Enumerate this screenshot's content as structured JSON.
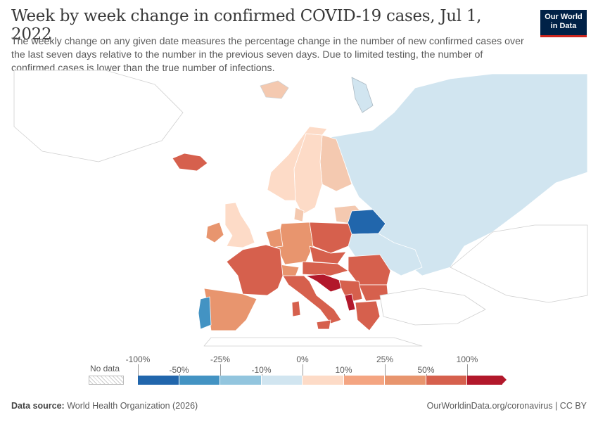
{
  "header": {
    "title": "Week by week change in confirmed COVID-19 cases, Jul 1, 2022",
    "subtitle": "The weekly change on any given date measures the percentage change in the number of new confirmed cases over the last seven days relative to the number in the previous seven days. Due to limited testing, the number of confirmed cases is lower than the true number of infections.",
    "logo_line1": "Our World",
    "logo_line2": "in Data"
  },
  "legend": {
    "no_data_label": "No data",
    "ticks_top": [
      "-100%",
      "-25%",
      "0%",
      "25%",
      "100%"
    ],
    "ticks_bottom": [
      "-50%",
      "-10%",
      "10%",
      "50%"
    ],
    "bins": [
      {
        "color": "#2166ac"
      },
      {
        "color": "#4393c3"
      },
      {
        "color": "#92c5de"
      },
      {
        "color": "#d1e5f0"
      },
      {
        "color": "#fddbc7"
      },
      {
        "color": "#f4a582"
      },
      {
        "color": "#e8956e"
      },
      {
        "color": "#d6604d"
      },
      {
        "color": "#b2182b"
      }
    ]
  },
  "regions": [
    {
      "name": "Russia",
      "change": "-10% to 0%",
      "color": "#d1e5f0"
    },
    {
      "name": "Belarus",
      "change": "below -50%",
      "color": "#2166ac"
    },
    {
      "name": "Portugal",
      "change": "-50% to -25%",
      "color": "#4393c3"
    },
    {
      "name": "Ukraine",
      "change": "-10% to 0%",
      "color": "#d1e5f0"
    },
    {
      "name": "Finland",
      "change": "10% to 25%",
      "color": "#f4c9b0"
    },
    {
      "name": "Sweden",
      "change": "0% to 10%",
      "color": "#fddbc7"
    },
    {
      "name": "Norway",
      "change": "0% to 10%",
      "color": "#fddbc7"
    },
    {
      "name": "United Kingdom",
      "change": "0% to 10%",
      "color": "#fddbc7"
    },
    {
      "name": "Iceland",
      "change": "50% to 100%",
      "color": "#d6604d"
    },
    {
      "name": "Spain",
      "change": "25% to 50%",
      "color": "#e8956e"
    },
    {
      "name": "France",
      "change": "50% to 100%",
      "color": "#d6604d"
    },
    {
      "name": "Germany",
      "change": "25% to 50%",
      "color": "#e8956e"
    },
    {
      "name": "Poland",
      "change": "50% to 100%",
      "color": "#d6604d"
    },
    {
      "name": "Italy",
      "change": "50% to 100%",
      "color": "#d6604d"
    },
    {
      "name": "Romania",
      "change": "50% to 100%",
      "color": "#d6604d"
    },
    {
      "name": "Croatia",
      "change": "above 100%",
      "color": "#b2182b"
    },
    {
      "name": "Albania",
      "change": "above 100%",
      "color": "#b2182b"
    },
    {
      "name": "Baltics",
      "change": "10% to 25%",
      "color": "#f4c9b0"
    },
    {
      "name": "Ireland",
      "change": "25% to 50%",
      "color": "#e8956e"
    },
    {
      "name": "Denmark",
      "change": "10% to 25%",
      "color": "#f4c9b0"
    }
  ],
  "footer": {
    "source_label": "Data source:",
    "source_value": "World Health Organization (2026)",
    "url": "OurWorldinData.org/coronavirus | CC BY"
  }
}
